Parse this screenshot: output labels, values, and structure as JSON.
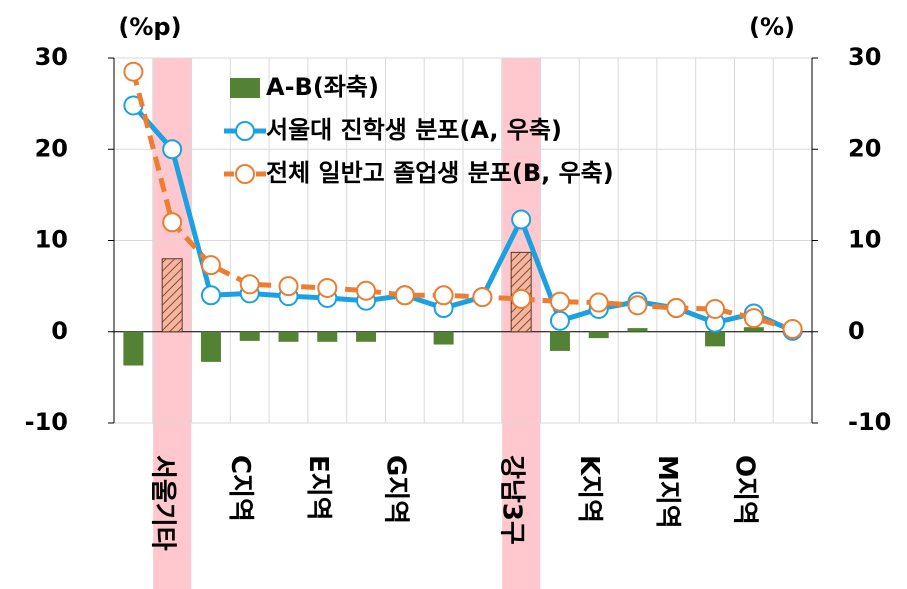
{
  "chart_data": {
    "type": "bar_line",
    "y_label": "(%p)",
    "y2_label": "(%)",
    "categories": [
      null,
      "서울기타",
      null,
      "C지역",
      null,
      "E지역",
      null,
      "G지역",
      null,
      null,
      "강남3구",
      null,
      "K지역",
      null,
      "M지역",
      null,
      "O지역",
      null
    ],
    "highlight": [
      1,
      10
    ],
    "series": [
      {
        "name": "A-B(좌축)",
        "type": "bar",
        "axis": "y",
        "color": "#548235",
        "values": [
          -3.7,
          8.0,
          -3.3,
          -1.0,
          -1.1,
          -1.1,
          -1.1,
          0,
          -1.4,
          0,
          8.7,
          -2.1,
          -0.7,
          0.4,
          0,
          -1.6,
          0.5,
          -0.2
        ]
      },
      {
        "name": "서울대 진학생 분포(A, 우축)",
        "type": "line",
        "axis": "y2",
        "color": "#1ba1e2",
        "dashed": false,
        "values": [
          24.8,
          20,
          4.0,
          4.2,
          3.9,
          3.7,
          3.4,
          4.0,
          2.6,
          3.8,
          12.3,
          1.2,
          2.5,
          3.3,
          2.6,
          1.0,
          2.0,
          0.1
        ]
      },
      {
        "name": "전체 일반고 졸업생 분포(B, 우축)",
        "type": "line",
        "axis": "y2",
        "color": "#ed7d31",
        "dashed": true,
        "values": [
          28.5,
          12,
          7.3,
          5.2,
          5.0,
          4.8,
          4.5,
          4.0,
          4.0,
          3.8,
          3.6,
          3.3,
          3.2,
          2.9,
          2.6,
          2.5,
          1.5,
          0.3
        ]
      }
    ],
    "ylim": [
      -10,
      30
    ],
    "yticks": [
      -10,
      0,
      10,
      20,
      30
    ],
    "y2lim": [
      -10,
      30
    ],
    "y2ticks": [
      -10,
      0,
      10,
      20,
      30
    ],
    "grid": true
  }
}
